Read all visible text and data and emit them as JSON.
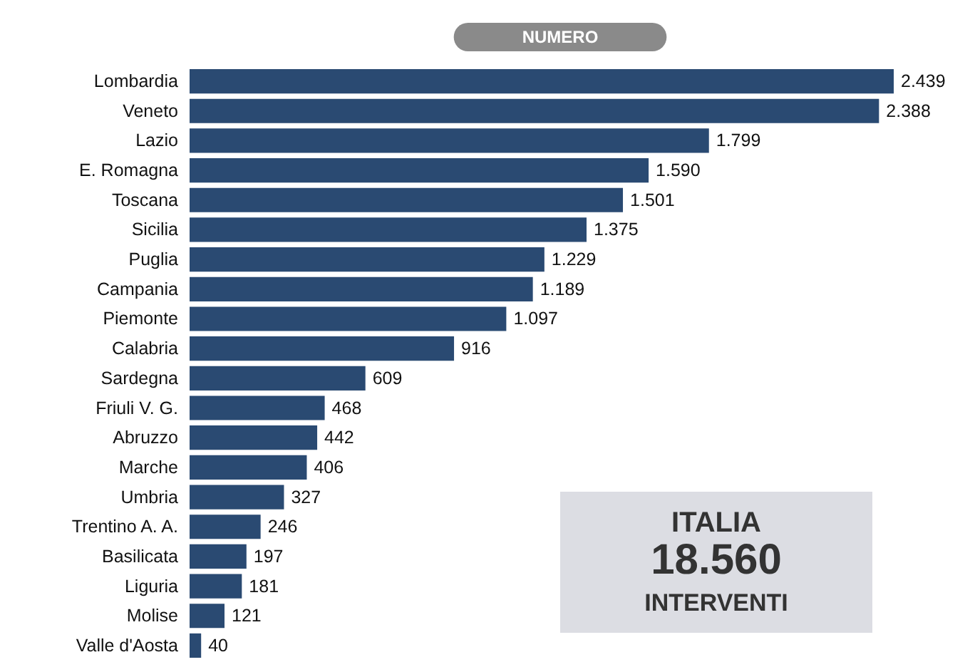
{
  "chart_data": {
    "type": "bar",
    "orientation": "horizontal",
    "title": "NUMERO",
    "categories": [
      "Lombardia",
      "Veneto",
      "Lazio",
      "E. Romagna",
      "Toscana",
      "Sicilia",
      "Puglia",
      "Campania",
      "Piemonte",
      "Calabria",
      "Sardegna",
      "Friuli V. G.",
      "Abruzzo",
      "Marche",
      "Umbria",
      "Trentino A. A.",
      "Basilicata",
      "Liguria",
      "Molise",
      "Valle d'Aosta"
    ],
    "values": [
      2439,
      2388,
      1799,
      1590,
      1501,
      1375,
      1229,
      1189,
      1097,
      916,
      609,
      468,
      442,
      406,
      327,
      246,
      197,
      181,
      121,
      40
    ],
    "value_labels": [
      "2.439",
      "2.388",
      "1.799",
      "1.590",
      "1.501",
      "1.375",
      "1.229",
      "1.189",
      "1.097",
      "916",
      "609",
      "468",
      "442",
      "406",
      "327",
      "246",
      "197",
      "181",
      "121",
      "40"
    ],
    "color": "#2a4a72",
    "annotations": [
      "ITALIA",
      "18.560",
      "INTERVENTI"
    ]
  }
}
